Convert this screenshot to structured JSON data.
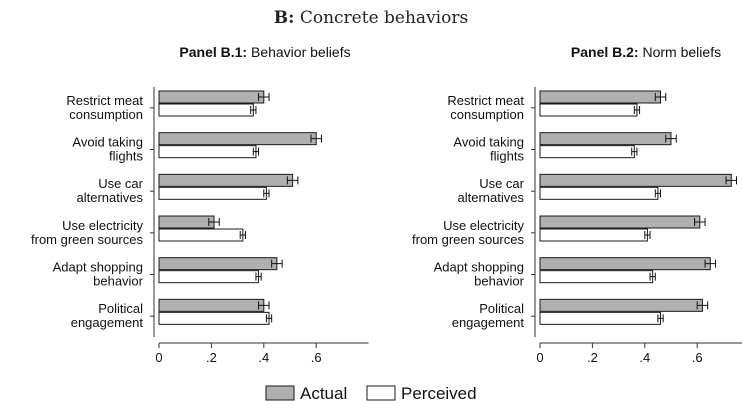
{
  "figure": {
    "title_bold": "B:",
    "title_rest": " Concrete behaviors"
  },
  "legend": {
    "actual": "Actual",
    "perceived": "Perceived"
  },
  "colors": {
    "actual_fill": "#b0b0b0",
    "perceived_fill": "#ffffff",
    "bar_stroke": "#1a1a1a"
  },
  "chart_data": [
    {
      "type": "bar",
      "orientation": "horizontal",
      "title_bold": "Panel B.1:",
      "title_rest": " Behavior beliefs",
      "categories": [
        [
          "Restrict meat",
          "consumption"
        ],
        [
          "Avoid taking",
          "flights"
        ],
        [
          "Use car",
          "alternatives"
        ],
        [
          "Use electricity",
          "from green sources"
        ],
        [
          "Adapt shopping",
          "behavior"
        ],
        [
          "Political",
          "engagement"
        ]
      ],
      "series": [
        {
          "name": "Actual",
          "values": [
            0.4,
            0.6,
            0.51,
            0.21,
            0.45,
            0.4
          ],
          "ci": [
            0.02,
            0.02,
            0.02,
            0.02,
            0.02,
            0.02
          ]
        },
        {
          "name": "Perceived",
          "values": [
            0.36,
            0.37,
            0.41,
            0.32,
            0.38,
            0.42
          ],
          "ci": [
            0.01,
            0.01,
            0.01,
            0.01,
            0.01,
            0.01
          ]
        }
      ],
      "xlim": [
        0,
        0.8
      ],
      "xticks": [
        0,
        0.2,
        0.4,
        0.6
      ],
      "xtick_labels": [
        "0",
        ".2",
        ".4",
        ".6"
      ],
      "grid": false,
      "legend": "bottom"
    },
    {
      "type": "bar",
      "orientation": "horizontal",
      "title_bold": "Panel B.2:",
      "title_rest": " Norm beliefs",
      "categories": [
        [
          "Restrict meat",
          "consumption"
        ],
        [
          "Avoid taking",
          "flights"
        ],
        [
          "Use car",
          "alternatives"
        ],
        [
          "Use electricity",
          "from green sources"
        ],
        [
          "Adapt shopping",
          "behavior"
        ],
        [
          "Political",
          "engagement"
        ]
      ],
      "series": [
        {
          "name": "Actual",
          "values": [
            0.46,
            0.5,
            0.73,
            0.61,
            0.65,
            0.62
          ],
          "ci": [
            0.02,
            0.02,
            0.02,
            0.02,
            0.02,
            0.02
          ]
        },
        {
          "name": "Perceived",
          "values": [
            0.37,
            0.36,
            0.45,
            0.41,
            0.43,
            0.46
          ],
          "ci": [
            0.01,
            0.01,
            0.01,
            0.01,
            0.01,
            0.01
          ]
        }
      ],
      "xlim": [
        0,
        0.8
      ],
      "xticks": [
        0,
        0.2,
        0.4,
        0.6
      ],
      "xtick_labels": [
        "0",
        ".2",
        ".4",
        ".6"
      ],
      "grid": false,
      "legend": "bottom"
    }
  ]
}
